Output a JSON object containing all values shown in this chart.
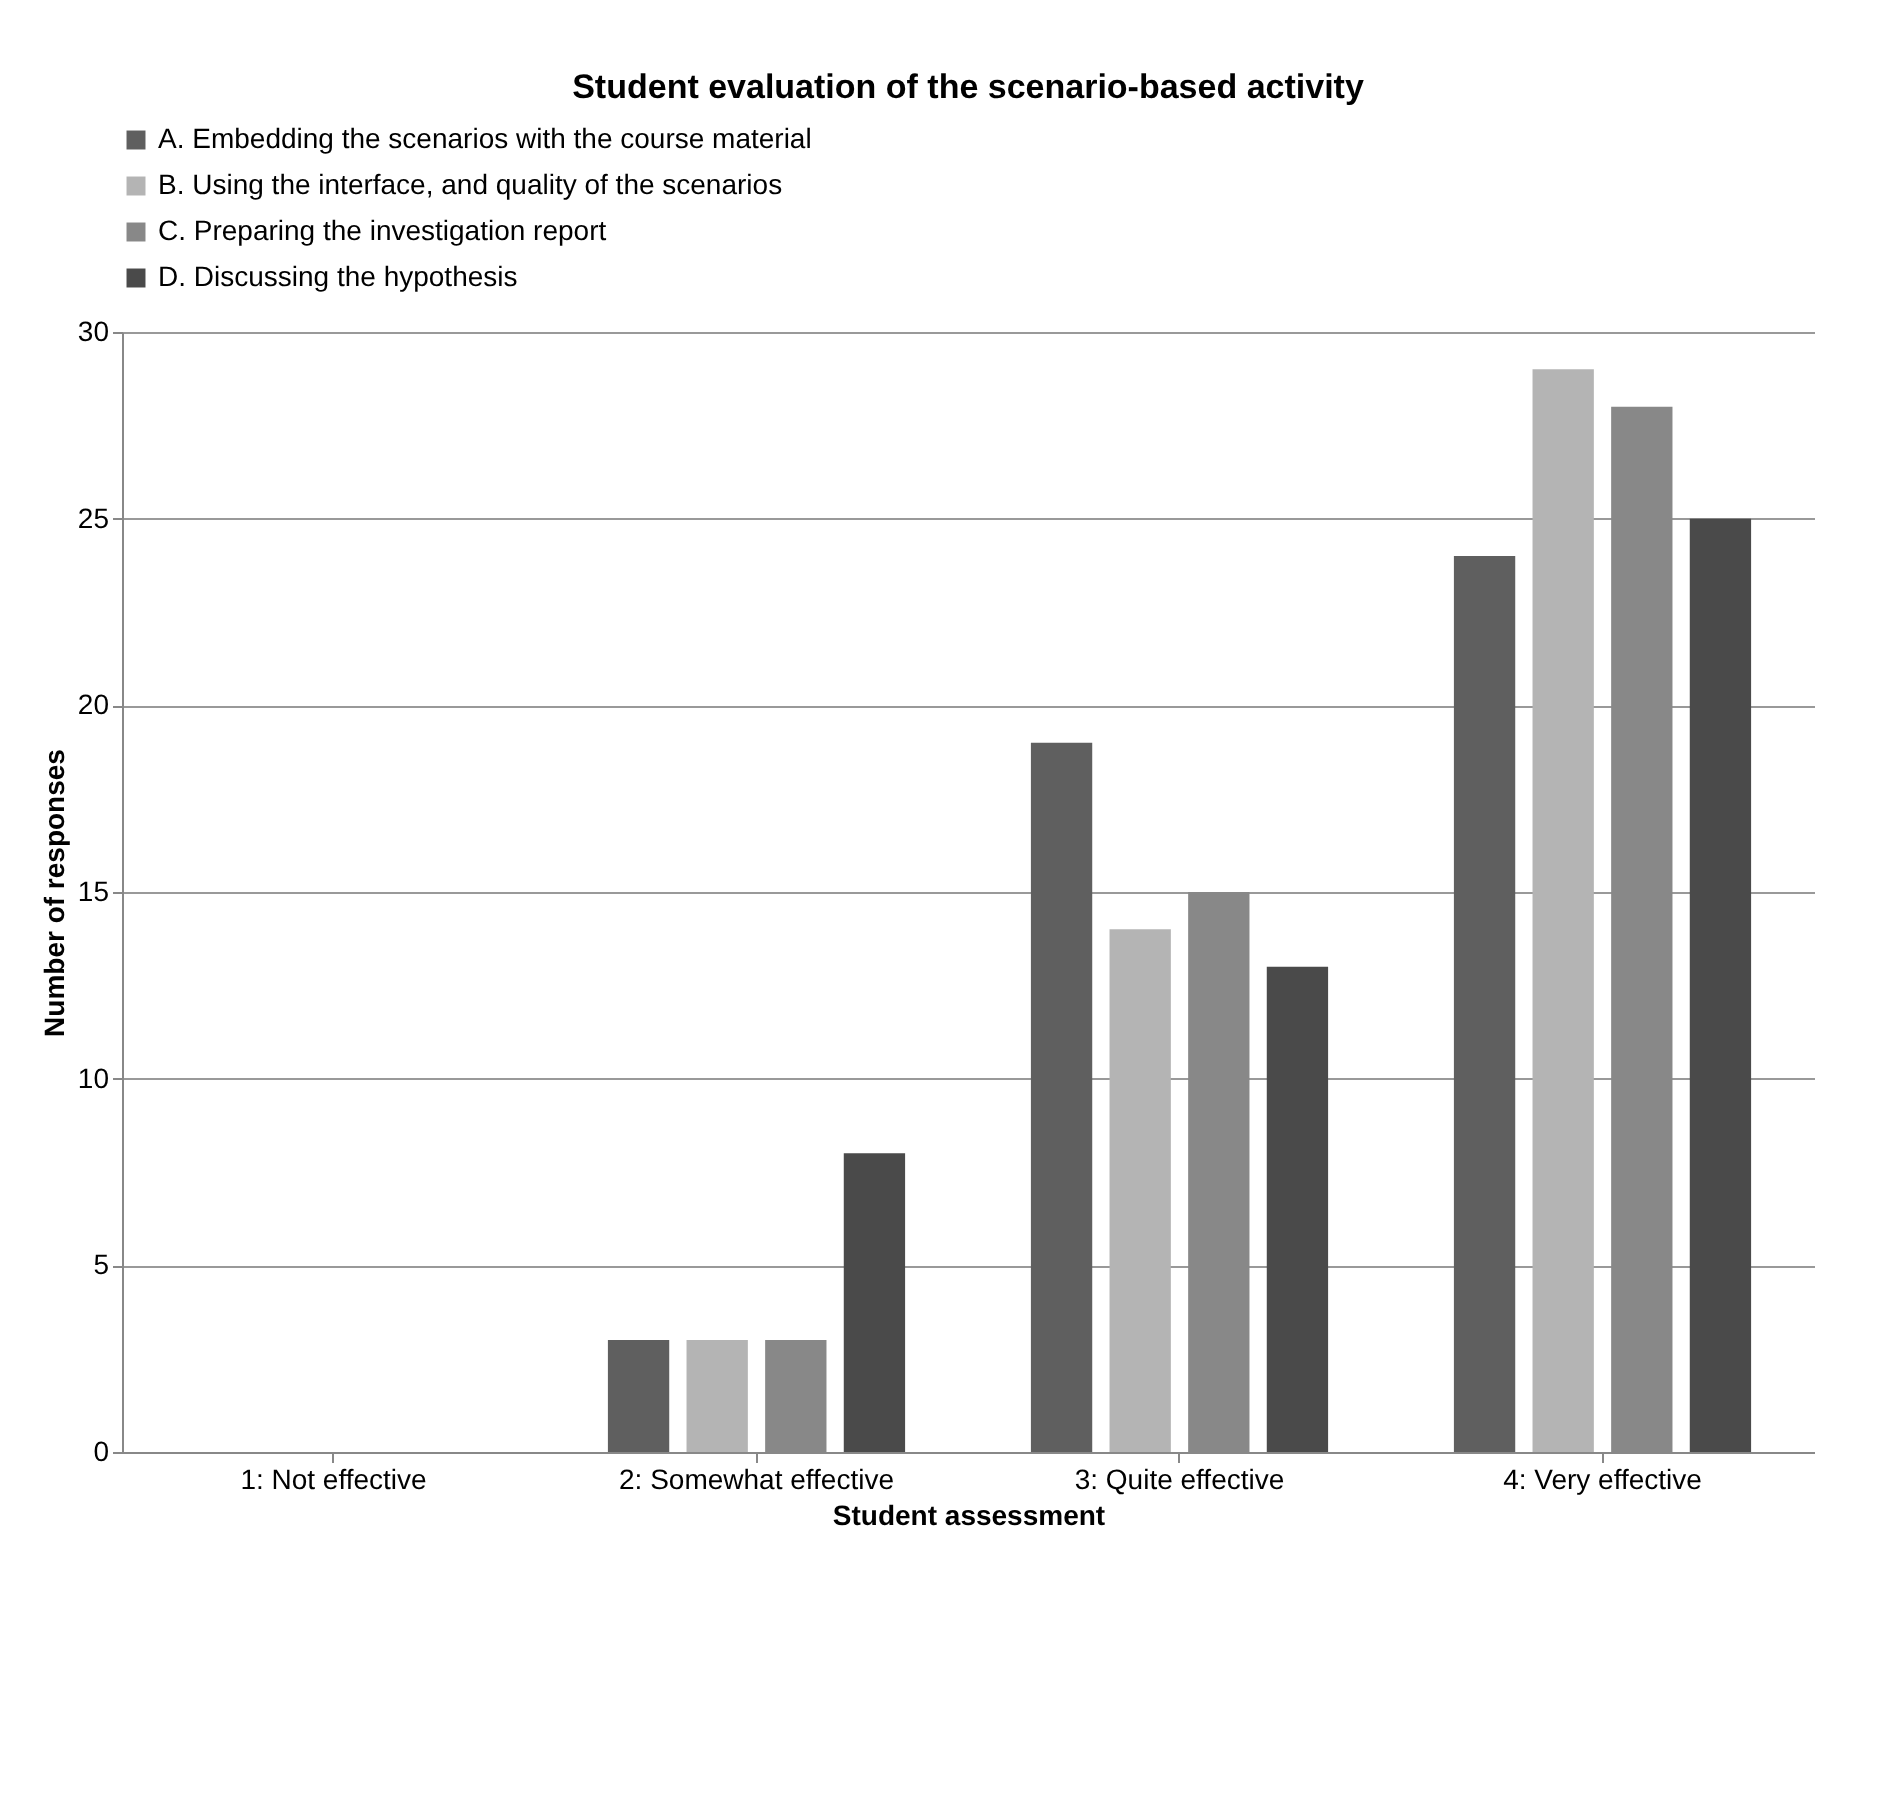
{
  "chart_data": {
    "type": "bar",
    "title": "Student evaluation of the scenario-based activity",
    "xlabel": "Student assessment",
    "ylabel": "Number of responses",
    "categories": [
      "1: Not effective",
      "2: Somewhat effective",
      "3: Quite effective",
      "4: Very effective"
    ],
    "series": [
      {
        "name": "A. Embedding the scenarios with the course material",
        "color": "#5f5f5f",
        "values": [
          0,
          3,
          19,
          24
        ]
      },
      {
        "name": "B. Using the interface, and quality of the scenarios",
        "color": "#b4b4b4",
        "values": [
          0,
          3,
          14,
          29
        ]
      },
      {
        "name": "C. Preparing the investigation report",
        "color": "#888888",
        "values": [
          0,
          3,
          15,
          28
        ]
      },
      {
        "name": "D. Discussing the hypothesis",
        "color": "#4a4a4a",
        "values": [
          0,
          8,
          13,
          25
        ]
      }
    ],
    "ylim": [
      0,
      30
    ],
    "yticks": [
      0,
      5,
      10,
      15,
      20,
      25,
      30
    ],
    "grid": "y",
    "legend": "top"
  }
}
